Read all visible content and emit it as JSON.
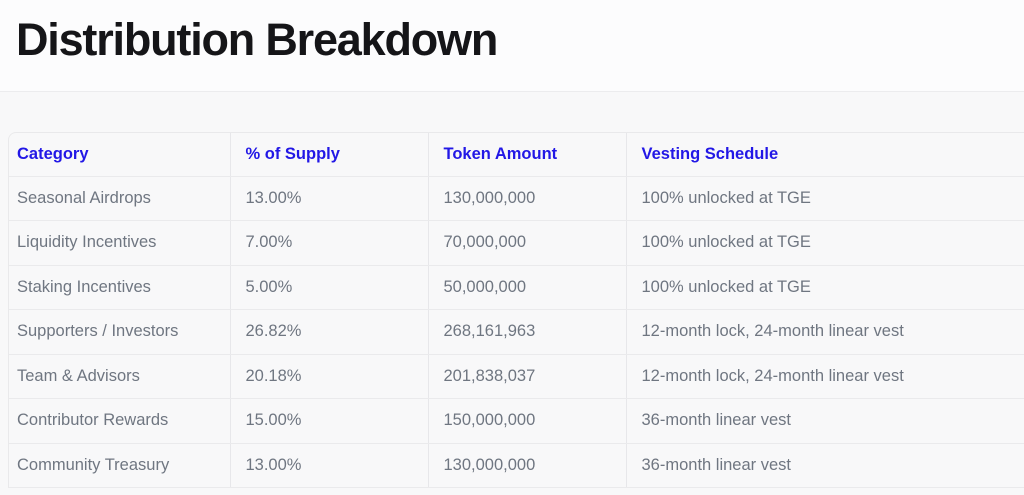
{
  "header": {
    "title": "Distribution Breakdown"
  },
  "table": {
    "columns": [
      {
        "label": "Category"
      },
      {
        "label": "% of Supply"
      },
      {
        "label": "Token Amount"
      },
      {
        "label": "Vesting Schedule"
      }
    ],
    "rows": [
      {
        "category": "Seasonal Airdrops",
        "supply_pct": "13.00%",
        "token_amount": "130,000,000",
        "vesting": "100% unlocked at TGE"
      },
      {
        "category": "Liquidity Incentives",
        "supply_pct": "7.00%",
        "token_amount": "70,000,000",
        "vesting": "100% unlocked at TGE"
      },
      {
        "category": "Staking Incentives",
        "supply_pct": "5.00%",
        "token_amount": "50,000,000",
        "vesting": "100% unlocked at TGE"
      },
      {
        "category": "Supporters / Investors",
        "supply_pct": "26.82%",
        "token_amount": "268,161,963",
        "vesting": "12-month lock, 24-month linear vest"
      },
      {
        "category": "Team & Advisors",
        "supply_pct": "20.18%",
        "token_amount": "201,838,037",
        "vesting": "12-month lock, 24-month linear vest"
      },
      {
        "category": "Contributor Rewards",
        "supply_pct": "15.00%",
        "token_amount": "150,000,000",
        "vesting": "36-month linear vest"
      },
      {
        "category": "Community Treasury",
        "supply_pct": "13.00%",
        "token_amount": "130,000,000",
        "vesting": "36-month linear vest"
      }
    ]
  },
  "colors": {
    "accent_header_text": "#2217E6",
    "body_text": "#6F7681",
    "title_text": "#151518",
    "divider": "#E9E9EB",
    "page_background": "#F8F8F9",
    "title_band_background": "#FCFCFD"
  }
}
